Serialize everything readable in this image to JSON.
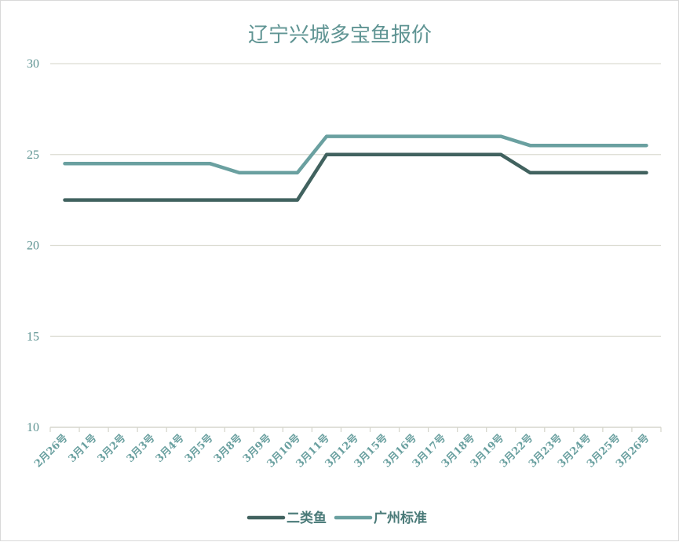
{
  "chart_data": {
    "type": "line",
    "title": "辽宁兴城多宝鱼报价",
    "xlabel": "",
    "ylabel": "",
    "categories": [
      "2月26号",
      "3月1号",
      "3月2号",
      "3月3号",
      "3月4号",
      "3月5号",
      "3月8号",
      "3月9号",
      "3月10号",
      "3月11号",
      "3月12号",
      "3月15号",
      "3月16号",
      "3月17号",
      "3月18号",
      "3月19号",
      "3月22号",
      "3月23号",
      "3月24号",
      "3月25号",
      "3月26号"
    ],
    "series": [
      {
        "name": "二类鱼",
        "color": "#41625f",
        "values": [
          22.5,
          22.5,
          22.5,
          22.5,
          22.5,
          22.5,
          22.5,
          22.5,
          22.5,
          25,
          25,
          25,
          25,
          25,
          25,
          25,
          24,
          24,
          24,
          24,
          24
        ]
      },
      {
        "name": "广州标准",
        "color": "#6aa0a0",
        "values": [
          24.5,
          24.5,
          24.5,
          24.5,
          24.5,
          24.5,
          24,
          24,
          24,
          26,
          26,
          26,
          26,
          26,
          26,
          26,
          25.5,
          25.5,
          25.5,
          25.5,
          25.5
        ]
      }
    ],
    "ylim": [
      10,
      30
    ],
    "yticks": [
      10,
      15,
      20,
      25,
      30
    ],
    "grid": true,
    "legend_position": "bottom"
  }
}
